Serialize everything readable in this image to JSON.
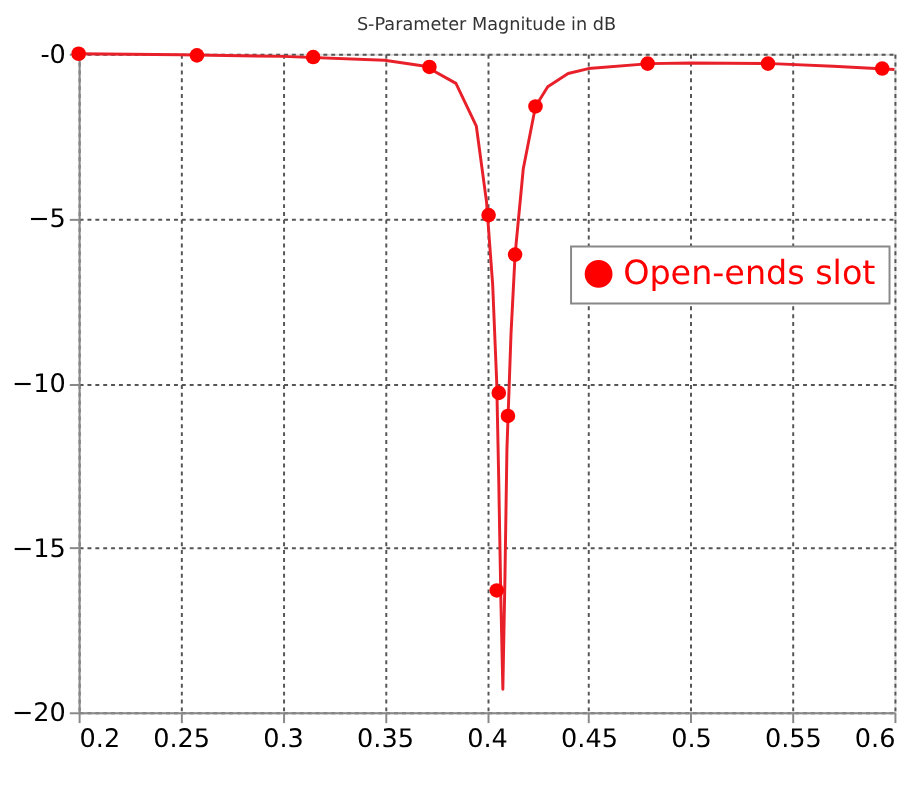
{
  "chart_data": {
    "type": "line",
    "title": "S-Parameter Magnitude in dB",
    "xlim": [
      0.2,
      0.6
    ],
    "xticks": [
      0.2,
      0.25,
      0.3,
      0.35,
      0.4,
      0.45,
      0.5,
      0.55,
      0.6
    ],
    "ylim": [
      -20,
      0
    ],
    "yticks": [
      -20,
      -15,
      -10,
      -5,
      {
        "value": 0,
        "label": "-0"
      }
    ],
    "grid": true,
    "legend": "right",
    "line_style": "solid",
    "series": [
      {
        "color": "#e8202a",
        "marker": "none",
        "x": [
          0.2,
          0.25,
          0.3,
          0.35,
          0.37,
          0.385,
          0.395,
          0.4,
          0.403,
          0.405,
          0.406,
          0.407,
          0.408,
          0.409,
          0.41,
          0.412,
          0.414,
          0.418,
          0.424,
          0.43,
          0.44,
          0.45,
          0.48,
          0.5,
          0.54,
          0.57,
          0.6
        ],
        "values": [
          0,
          -0.03,
          -0.08,
          -0.2,
          -0.38,
          -0.9,
          -2.2,
          -4.5,
          -7,
          -10,
          -13,
          -16.5,
          -19.3,
          -16,
          -12,
          -8.5,
          -6.1,
          -3.5,
          -1.6,
          -1.0,
          -0.6,
          -0.45,
          -0.3,
          -0.28,
          -0.3,
          -0.38,
          -0.48
        ]
      },
      {
        "type": "scatter",
        "name": "Open-ends slot",
        "color": "#ff0000",
        "marker": "circle",
        "x": [
          0.2,
          0.258,
          0.315,
          0.372,
          0.401,
          0.406,
          0.405,
          0.4105,
          0.414,
          0.424,
          0.479,
          0.538,
          0.594
        ],
        "values": [
          0,
          -0.05,
          -0.1,
          -0.4,
          -4.9,
          -10.3,
          -16.3,
          -11.0,
          -6.1,
          -1.6,
          -0.3,
          -0.3,
          -0.45
        ]
      }
    ]
  }
}
